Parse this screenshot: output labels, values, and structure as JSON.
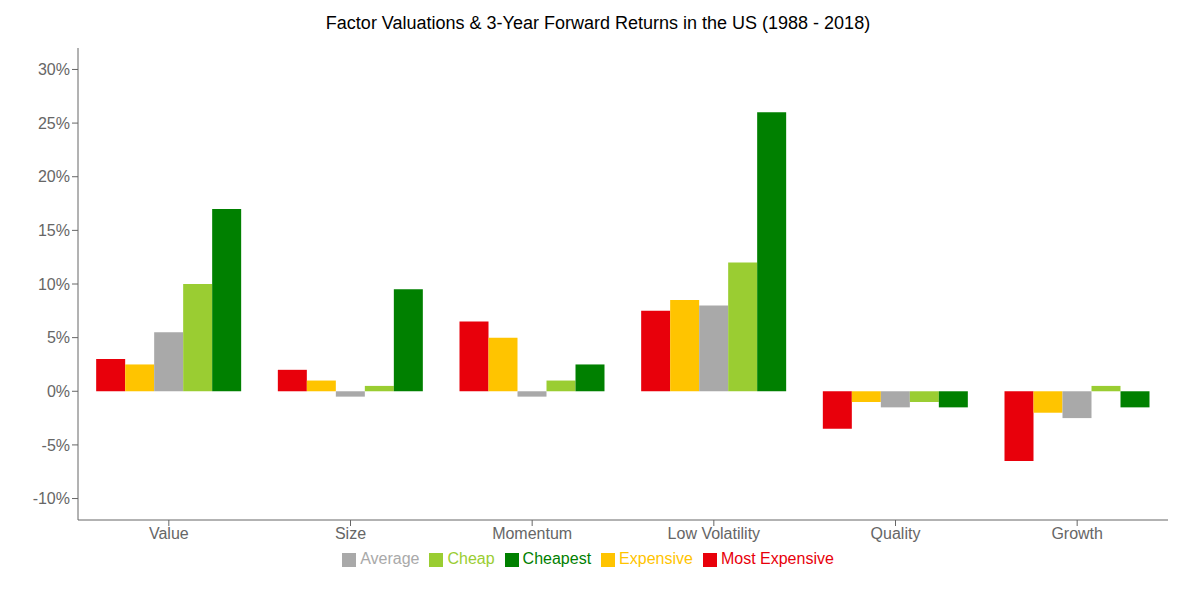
{
  "chart_data": {
    "type": "bar",
    "title": "Factor Valuations & 3-Year Forward Returns in the US (1988 - 2018)",
    "categories": [
      "Value",
      "Size",
      "Momentum",
      "Low Volatility",
      "Quality",
      "Growth"
    ],
    "series": [
      {
        "name": "Most Expensive",
        "color": "#E8000B",
        "values": [
          3.0,
          2.0,
          6.5,
          7.5,
          -3.5,
          -6.5
        ]
      },
      {
        "name": "Expensive",
        "color": "#FFC400",
        "values": [
          2.5,
          1.0,
          5.0,
          8.5,
          -1.0,
          -2.0
        ]
      },
      {
        "name": "Average",
        "color": "#A9A9A9",
        "values": [
          5.5,
          -0.5,
          -0.5,
          8.0,
          -1.5,
          -2.5
        ]
      },
      {
        "name": "Cheap",
        "color": "#9ACD32",
        "values": [
          10.0,
          0.5,
          1.0,
          12.0,
          -1.0,
          0.5
        ]
      },
      {
        "name": "Cheapest",
        "color": "#008000",
        "values": [
          17.0,
          9.5,
          2.5,
          26.0,
          -1.5,
          -1.5
        ]
      }
    ],
    "ylim": [
      -12,
      32
    ],
    "yticks": [
      {
        "value": -10,
        "label": "-10%"
      },
      {
        "value": -5,
        "label": "-5%"
      },
      {
        "value": 0,
        "label": "0%"
      },
      {
        "value": 5,
        "label": "5%"
      },
      {
        "value": 10,
        "label": "10%"
      },
      {
        "value": 15,
        "label": "15%"
      },
      {
        "value": 20,
        "label": "20%"
      },
      {
        "value": 25,
        "label": "25%"
      },
      {
        "value": 30,
        "label": "30%"
      }
    ],
    "grid": false,
    "legend": "bottom"
  }
}
